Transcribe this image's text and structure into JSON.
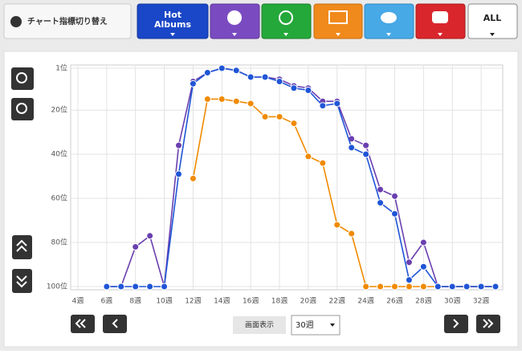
{
  "ui": {
    "switch_label": "チャート指標切り替え",
    "hot_albums": [
      "Hot",
      "Albums"
    ],
    "all": "ALL",
    "display_label": "画面表示",
    "display_value": "30週"
  },
  "chart_data": {
    "type": "line",
    "x": [
      6,
      7,
      8,
      9,
      10,
      11,
      12,
      13,
      14,
      15,
      16,
      17,
      18,
      19,
      20,
      21,
      22,
      23,
      24,
      25,
      26,
      27,
      28,
      29,
      30,
      31,
      32,
      33
    ],
    "xlim": [
      3.5,
      33.5
    ],
    "xticks": [
      {
        "value": 4,
        "label": "4週"
      },
      {
        "value": 6,
        "label": "6週"
      },
      {
        "value": 8,
        "label": "8週"
      },
      {
        "value": 10,
        "label": "10週"
      },
      {
        "value": 12,
        "label": "12週"
      },
      {
        "value": 14,
        "label": "14週"
      },
      {
        "value": 16,
        "label": "16週"
      },
      {
        "value": 18,
        "label": "18週"
      },
      {
        "value": 20,
        "label": "20週"
      },
      {
        "value": 22,
        "label": "22週"
      },
      {
        "value": 24,
        "label": "24週"
      },
      {
        "value": 26,
        "label": "26週"
      },
      {
        "value": 28,
        "label": "28週"
      },
      {
        "value": 30,
        "label": "30週"
      },
      {
        "value": 32,
        "label": "32週"
      }
    ],
    "ylim": [
      1,
      100
    ],
    "y_reversed": true,
    "yticks": [
      {
        "value": 1,
        "label": "1位"
      },
      {
        "value": 20,
        "label": "20位"
      },
      {
        "value": 40,
        "label": "40位"
      },
      {
        "value": 60,
        "label": "60位"
      },
      {
        "value": 80,
        "label": "80位"
      },
      {
        "value": 100,
        "label": "100位"
      }
    ],
    "grid": true,
    "series": [
      {
        "color": "#f08a00",
        "values": [
          null,
          null,
          null,
          null,
          null,
          null,
          51,
          15,
          15,
          16,
          17,
          23,
          23,
          26,
          41,
          44,
          72,
          76,
          100,
          100,
          100,
          100,
          100,
          100,
          100,
          100,
          100,
          100
        ]
      },
      {
        "color": "#6a3fb0",
        "values": [
          100,
          100,
          82,
          77,
          100,
          36,
          7,
          3,
          1,
          2,
          5,
          5,
          6,
          9,
          10,
          16,
          16,
          33,
          36,
          56,
          59,
          89,
          80,
          100,
          100,
          100,
          100,
          100
        ]
      },
      {
        "color": "#1f55d6",
        "values": [
          100,
          100,
          100,
          100,
          100,
          49,
          8,
          3,
          1,
          2,
          5,
          5,
          7,
          10,
          11,
          18,
          17,
          37,
          40,
          62,
          67,
          97,
          91,
          100,
          100,
          100,
          100,
          100
        ]
      }
    ]
  }
}
